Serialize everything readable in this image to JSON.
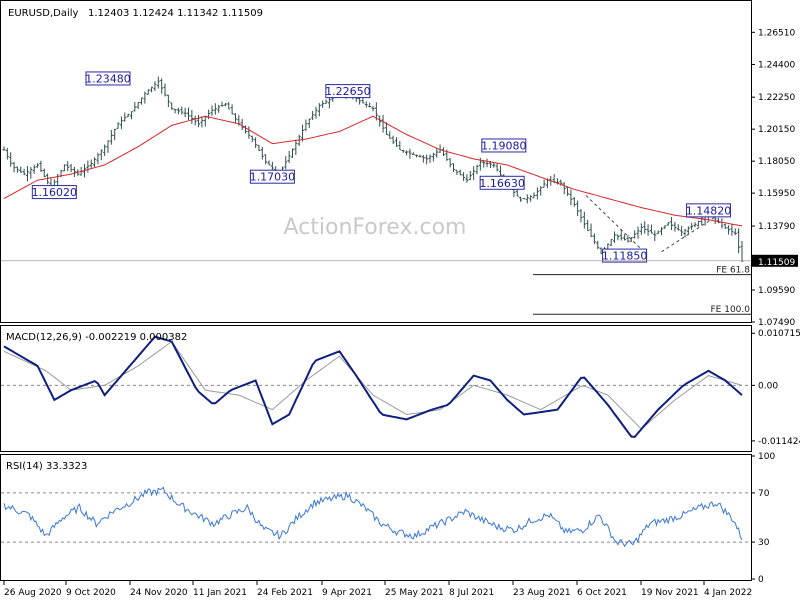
{
  "header": {
    "symbol": "EURUSD,Daily",
    "ohlc": "1.12403 1.12424 1.11342 1.11509"
  },
  "watermark": "ActionForex.com",
  "colors": {
    "candle": "#2f4f4f",
    "ma": "#d6262a",
    "macd": "#0f1f80",
    "signal": "#9a9a9a",
    "rsi": "#3b78d8",
    "label_border": "#2a2aa0",
    "label_text": "#1a1aa0",
    "last_price_bg": "#000000"
  },
  "chart_data": [
    {
      "type": "candlestick",
      "name": "price",
      "ylim": [
        1.0749,
        1.285
      ],
      "y_ticks": [
        "1.26510",
        "1.24400",
        "1.22250",
        "1.20150",
        "1.18050",
        "1.15950",
        "1.13790",
        "1.09590",
        "1.07490"
      ],
      "last_price": "1.11509",
      "x_labels": [
        "26 Aug 2020",
        "9 Oct 2020",
        "24 Nov 2020",
        "11 Jan 2021",
        "24 Feb 2021",
        "9 Apr 2021",
        "25 May 2021",
        "8 Jul 2021",
        "23 Aug 2021",
        "6 Oct 2021",
        "19 Nov 2021",
        "4 Jan 2022"
      ],
      "close_path": [
        [
          0,
          1.188
        ],
        [
          5,
          1.177
        ],
        [
          12,
          1.172
        ],
        [
          20,
          1.178
        ],
        [
          28,
          1.163
        ],
        [
          36,
          1.178
        ],
        [
          44,
          1.172
        ],
        [
          52,
          1.179
        ],
        [
          60,
          1.19
        ],
        [
          68,
          1.205
        ],
        [
          76,
          1.213
        ],
        [
          84,
          1.225
        ],
        [
          92,
          1.233
        ],
        [
          100,
          1.215
        ],
        [
          108,
          1.212
        ],
        [
          116,
          1.205
        ],
        [
          124,
          1.214
        ],
        [
          132,
          1.218
        ],
        [
          140,
          1.205
        ],
        [
          148,
          1.195
        ],
        [
          156,
          1.18
        ],
        [
          164,
          1.172
        ],
        [
          172,
          1.188
        ],
        [
          180,
          1.205
        ],
        [
          188,
          1.217
        ],
        [
          196,
          1.222
        ],
        [
          204,
          1.226
        ],
        [
          212,
          1.22
        ],
        [
          220,
          1.215
        ],
        [
          228,
          1.198
        ],
        [
          236,
          1.188
        ],
        [
          244,
          1.185
        ],
        [
          252,
          1.182
        ],
        [
          260,
          1.188
        ],
        [
          268,
          1.175
        ],
        [
          276,
          1.168
        ],
        [
          284,
          1.18
        ],
        [
          292,
          1.178
        ],
        [
          300,
          1.165
        ],
        [
          308,
          1.155
        ],
        [
          316,
          1.158
        ],
        [
          324,
          1.168
        ],
        [
          332,
          1.166
        ],
        [
          340,
          1.152
        ],
        [
          348,
          1.135
        ],
        [
          356,
          1.12
        ],
        [
          364,
          1.132
        ],
        [
          372,
          1.128
        ],
        [
          380,
          1.137
        ],
        [
          388,
          1.132
        ],
        [
          396,
          1.14
        ],
        [
          404,
          1.134
        ],
        [
          412,
          1.139
        ],
        [
          420,
          1.147
        ],
        [
          428,
          1.138
        ],
        [
          436,
          1.133
        ],
        [
          440,
          1.115
        ]
      ],
      "ma_path": [
        [
          0,
          1.156
        ],
        [
          20,
          1.168
        ],
        [
          40,
          1.172
        ],
        [
          60,
          1.178
        ],
        [
          80,
          1.19
        ],
        [
          100,
          1.204
        ],
        [
          120,
          1.21
        ],
        [
          140,
          1.205
        ],
        [
          160,
          1.192
        ],
        [
          180,
          1.195
        ],
        [
          200,
          1.2
        ],
        [
          220,
          1.21
        ],
        [
          240,
          1.198
        ],
        [
          260,
          1.188
        ],
        [
          280,
          1.182
        ],
        [
          300,
          1.178
        ],
        [
          320,
          1.17
        ],
        [
          340,
          1.162
        ],
        [
          360,
          1.156
        ],
        [
          380,
          1.15
        ],
        [
          400,
          1.145
        ],
        [
          420,
          1.142
        ],
        [
          440,
          1.138
        ]
      ],
      "annotations": [
        {
          "label": "1.23480",
          "at": [
            62,
            1.2348
          ]
        },
        {
          "label": "1.16020",
          "at": [
            30,
            1.1602
          ]
        },
        {
          "label": "1.17030",
          "at": [
            160,
            1.1703
          ]
        },
        {
          "label": "1.22650",
          "at": [
            205,
            1.2265
          ]
        },
        {
          "label": "1.19080",
          "at": [
            298,
            1.1908
          ]
        },
        {
          "label": "1.16630",
          "at": [
            297,
            1.1663
          ]
        },
        {
          "label": "1.11850",
          "at": [
            370,
            1.1185
          ]
        },
        {
          "label": "1.14820",
          "at": [
            420,
            1.1482
          ]
        }
      ],
      "fe_levels": [
        {
          "label": "FE 61.8",
          "value": 1.106
        },
        {
          "label": "FE 100.0",
          "value": 1.08
        }
      ]
    },
    {
      "type": "line",
      "name": "MACD(12,26,9)",
      "header": "MACD(12,26,9) -0.002219 0.000382",
      "ylim": [
        -0.0133,
        0.012
      ],
      "y_ticks": [
        "0.010715",
        "0.00",
        "-0.011424"
      ],
      "macd_path": [
        [
          0,
          0.008
        ],
        [
          20,
          0.004
        ],
        [
          30,
          -0.003
        ],
        [
          40,
          -0.001
        ],
        [
          55,
          0.001
        ],
        [
          60,
          -0.002
        ],
        [
          75,
          0.004
        ],
        [
          90,
          0.01
        ],
        [
          100,
          0.009
        ],
        [
          115,
          -0.001
        ],
        [
          125,
          -0.004
        ],
        [
          135,
          -0.001
        ],
        [
          150,
          0.001
        ],
        [
          160,
          -0.008
        ],
        [
          170,
          -0.006
        ],
        [
          185,
          0.005
        ],
        [
          200,
          0.007
        ],
        [
          210,
          0.002
        ],
        [
          225,
          -0.006
        ],
        [
          240,
          -0.007
        ],
        [
          255,
          -0.005
        ],
        [
          265,
          -0.004
        ],
        [
          280,
          0.002
        ],
        [
          290,
          0.001
        ],
        [
          300,
          -0.003
        ],
        [
          310,
          -0.006
        ],
        [
          330,
          -0.005
        ],
        [
          345,
          0.002
        ],
        [
          360,
          -0.004
        ],
        [
          375,
          -0.011
        ],
        [
          390,
          -0.005
        ],
        [
          405,
          0.0
        ],
        [
          420,
          0.003
        ],
        [
          430,
          0.001
        ],
        [
          440,
          -0.002
        ]
      ],
      "signal_path": [
        [
          0,
          0.007
        ],
        [
          25,
          0.003
        ],
        [
          40,
          -0.001
        ],
        [
          60,
          0.0
        ],
        [
          80,
          0.004
        ],
        [
          100,
          0.009
        ],
        [
          120,
          -0.001
        ],
        [
          140,
          -0.002
        ],
        [
          160,
          -0.005
        ],
        [
          180,
          0.001
        ],
        [
          200,
          0.006
        ],
        [
          220,
          -0.002
        ],
        [
          240,
          -0.006
        ],
        [
          260,
          -0.005
        ],
        [
          280,
          0.0
        ],
        [
          300,
          -0.002
        ],
        [
          320,
          -0.005
        ],
        [
          345,
          0.0
        ],
        [
          360,
          -0.002
        ],
        [
          380,
          -0.009
        ],
        [
          400,
          -0.003
        ],
        [
          420,
          0.002
        ],
        [
          440,
          0.0
        ]
      ]
    },
    {
      "type": "line",
      "name": "RSI(14)",
      "header": "RSI(14) 33.3323",
      "ylim": [
        0,
        100
      ],
      "y_ticks": [
        "100",
        "70",
        "30",
        "0"
      ],
      "levels": [
        70,
        30
      ],
      "rsi_path": [
        [
          0,
          60
        ],
        [
          15,
          52
        ],
        [
          25,
          35
        ],
        [
          35,
          50
        ],
        [
          45,
          58
        ],
        [
          55,
          45
        ],
        [
          65,
          55
        ],
        [
          75,
          62
        ],
        [
          85,
          70
        ],
        [
          95,
          72
        ],
        [
          105,
          60
        ],
        [
          115,
          52
        ],
        [
          125,
          45
        ],
        [
          135,
          52
        ],
        [
          145,
          58
        ],
        [
          155,
          40
        ],
        [
          165,
          35
        ],
        [
          175,
          50
        ],
        [
          185,
          62
        ],
        [
          195,
          65
        ],
        [
          205,
          68
        ],
        [
          215,
          58
        ],
        [
          225,
          45
        ],
        [
          235,
          38
        ],
        [
          245,
          35
        ],
        [
          255,
          42
        ],
        [
          265,
          48
        ],
        [
          275,
          55
        ],
        [
          285,
          48
        ],
        [
          295,
          42
        ],
        [
          305,
          40
        ],
        [
          315,
          48
        ],
        [
          325,
          52
        ],
        [
          335,
          38
        ],
        [
          345,
          40
        ],
        [
          355,
          52
        ],
        [
          365,
          30
        ],
        [
          375,
          28
        ],
        [
          385,
          45
        ],
        [
          395,
          48
        ],
        [
          405,
          52
        ],
        [
          415,
          58
        ],
        [
          425,
          62
        ],
        [
          435,
          48
        ],
        [
          440,
          33
        ]
      ]
    }
  ]
}
